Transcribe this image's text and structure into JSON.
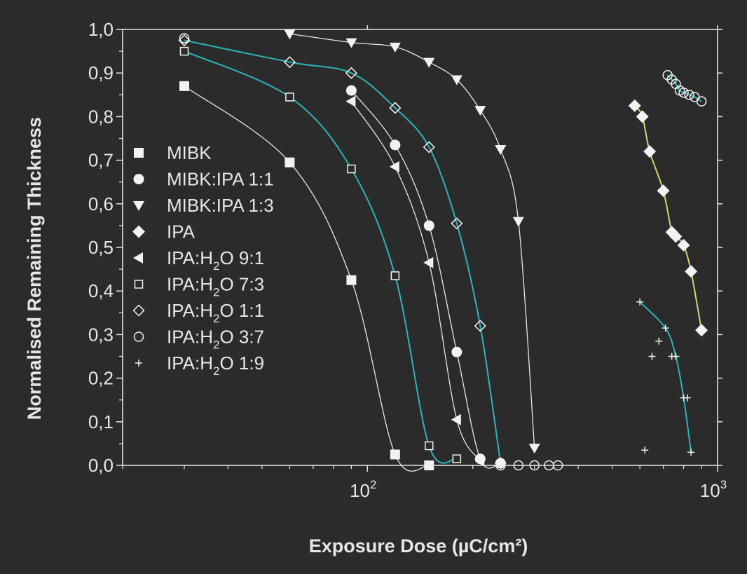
{
  "chart_data": {
    "type": "scatter",
    "title": "",
    "xlabel": "Exposure Dose (µC/cm²)",
    "ylabel": "Normalised Remaining Thickness",
    "xscale": "log",
    "xlim": [
      20,
      1000
    ],
    "ylim": [
      0,
      1
    ],
    "x_ticks": [
      {
        "value": 100,
        "base": "10",
        "exp": "2"
      },
      {
        "value": 1000,
        "base": "10",
        "exp": "3"
      }
    ],
    "y_ticks": [
      {
        "value": 0.0,
        "label": "0,0"
      },
      {
        "value": 0.1,
        "label": "0,1"
      },
      {
        "value": 0.2,
        "label": "0,2"
      },
      {
        "value": 0.3,
        "label": "0,3"
      },
      {
        "value": 0.4,
        "label": "0,4"
      },
      {
        "value": 0.5,
        "label": "0,5"
      },
      {
        "value": 0.6,
        "label": "0,6"
      },
      {
        "value": 0.7,
        "label": "0,7"
      },
      {
        "value": 0.8,
        "label": "0,8"
      },
      {
        "value": 0.9,
        "label": "0,9"
      },
      {
        "value": 1.0,
        "label": "1,0"
      }
    ],
    "grid": false,
    "legend_position": "left",
    "colors": {
      "background": "#2b2b2b",
      "axis": "#e6e6e6",
      "white_fit": "#e8e8e8",
      "teal_fit": "#2fb3b8",
      "yellow_fit": "#d9d27a"
    },
    "series": [
      {
        "name": "MIBK",
        "legend_prefix": "MIBK",
        "legend_sub": "",
        "legend_suffix": "",
        "marker": "square",
        "fit_color": "#e8e8e8",
        "x": [
          30,
          60,
          90,
          120,
          150
        ],
        "y": [
          0.87,
          0.695,
          0.425,
          0.025,
          0.0
        ]
      },
      {
        "name": "MIBK:IPA 1:1",
        "legend_prefix": "MIBK:IPA 1:1",
        "legend_sub": "",
        "legend_suffix": "",
        "marker": "circle",
        "fit_color": "#e8e8e8",
        "x": [
          90,
          120,
          150,
          180,
          210,
          240
        ],
        "y": [
          0.86,
          0.735,
          0.55,
          0.26,
          0.015,
          0.005
        ]
      },
      {
        "name": "MIBK:IPA 1:3",
        "legend_prefix": "MIBK:IPA 1:3",
        "legend_sub": "",
        "legend_suffix": "",
        "marker": "triangle-down",
        "fit_color": "#e8e8e8",
        "x": [
          60,
          90,
          120,
          150,
          180,
          210,
          240,
          270,
          300
        ],
        "y": [
          0.99,
          0.97,
          0.96,
          0.925,
          0.885,
          0.815,
          0.725,
          0.56,
          0.04
        ]
      },
      {
        "name": "IPA",
        "legend_prefix": "IPA",
        "legend_sub": "",
        "legend_suffix": "",
        "marker": "diamond",
        "fit_color": "#d9d27a",
        "x": [
          580,
          610,
          640,
          700,
          740,
          760,
          800,
          840,
          900
        ],
        "y": [
          0.825,
          0.8,
          0.72,
          0.63,
          0.535,
          0.525,
          0.505,
          0.445,
          0.31
        ]
      },
      {
        "name": "IPA:H2O 9:1",
        "legend_prefix": "IPA:H",
        "legend_sub": "2",
        "legend_suffix": "O 9:1",
        "marker": "triangle-left",
        "fit_color": "#e8e8e8",
        "x": [
          90,
          120,
          150,
          180,
          210
        ],
        "y": [
          0.835,
          0.685,
          0.465,
          0.105,
          0.01
        ]
      },
      {
        "name": "IPA:H2O 7:3",
        "legend_prefix": "IPA:H",
        "legend_sub": "2",
        "legend_suffix": "O 7:3",
        "marker": "open-square",
        "fit_color": "#2fb3b8",
        "x": [
          30,
          60,
          90,
          120,
          150,
          180
        ],
        "y": [
          0.95,
          0.845,
          0.68,
          0.435,
          0.045,
          0.015
        ]
      },
      {
        "name": "IPA:H2O 1:1",
        "legend_prefix": "IPA:H",
        "legend_sub": "2",
        "legend_suffix": "O 1:1",
        "marker": "open-diamond",
        "fit_color": "#2fb3b8",
        "x": [
          30,
          60,
          90,
          120,
          150,
          180,
          210,
          240
        ],
        "y": [
          0.975,
          0.925,
          0.9,
          0.82,
          0.73,
          0.555,
          0.32,
          0.005
        ]
      },
      {
        "name": "IPA:H2O 3:7",
        "legend_prefix": "IPA:H",
        "legend_sub": "2",
        "legend_suffix": "O 3:7",
        "marker": "open-circle",
        "fit_color": "#2fb3b8",
        "x": [
          30,
          240,
          270,
          300,
          330,
          350,
          720,
          740,
          760,
          780,
          800,
          830,
          860,
          900
        ],
        "y": [
          0.98,
          0.0,
          0.0,
          0.0,
          0.0,
          0.0,
          0.895,
          0.885,
          0.875,
          0.86,
          0.855,
          0.85,
          0.845,
          0.835
        ],
        "fit_range": [
          6,
          13
        ]
      },
      {
        "name": "IPA:H2O 1:9",
        "legend_prefix": "IPA:H",
        "legend_sub": "2",
        "legend_suffix": "O 1:9",
        "marker": "plus",
        "fit_color": "#2fb3b8",
        "x": [
          600,
          620,
          650,
          680,
          710,
          740,
          760,
          800,
          820,
          840
        ],
        "y": [
          0.375,
          0.035,
          0.25,
          0.285,
          0.315,
          0.25,
          0.25,
          0.155,
          0.155,
          0.03
        ],
        "fit_points": [
          0,
          4,
          6,
          7,
          9
        ]
      }
    ]
  }
}
